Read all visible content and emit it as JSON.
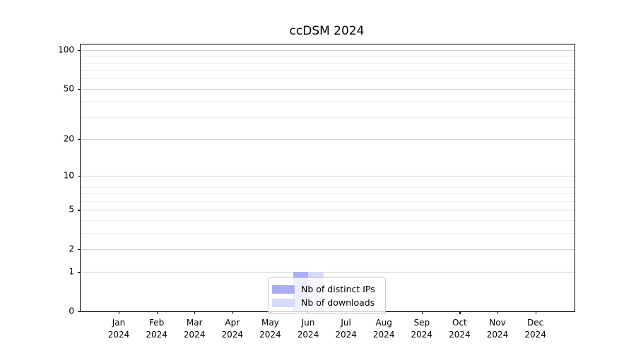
{
  "chart_data": {
    "type": "bar",
    "title": "ccDSM 2024",
    "x_months": [
      "Jan",
      "Feb",
      "Mar",
      "Apr",
      "May",
      "Jun",
      "Jul",
      "Aug",
      "Sep",
      "Oct",
      "Nov",
      "Dec"
    ],
    "x_year": "2024",
    "categories": [
      "Jan 2024",
      "Feb 2024",
      "Mar 2024",
      "Apr 2024",
      "May 2024",
      "Jun 2024",
      "Jul 2024",
      "Aug 2024",
      "Sep 2024",
      "Oct 2024",
      "Nov 2024",
      "Dec 2024"
    ],
    "series": [
      {
        "name": "Nb of distinct IPs",
        "color": "#a9adf4",
        "values": [
          0,
          0,
          0,
          0,
          0,
          1,
          0,
          0,
          0,
          0,
          0,
          0
        ]
      },
      {
        "name": "Nb of downloads",
        "color": "#d7d9f9",
        "values": [
          0,
          0,
          0,
          0,
          0,
          1,
          0,
          0,
          0,
          0,
          0,
          0
        ]
      }
    ],
    "y_scale": "log1p",
    "ylim": [
      0,
      100
    ],
    "y_ticks": [
      0,
      1,
      2,
      5,
      10,
      20,
      50,
      100
    ],
    "y_minor_ticks": [
      3,
      4,
      6,
      7,
      8,
      9,
      30,
      40,
      60,
      70,
      80,
      90
    ],
    "grid": true,
    "legend_position": "lower center",
    "colors": {
      "grid_major": "#d3d3d3",
      "grid_minor": "#ececec",
      "axis": "#000000",
      "legend_border": "#cccccc",
      "text": "#000000",
      "background": "#ffffff"
    }
  }
}
